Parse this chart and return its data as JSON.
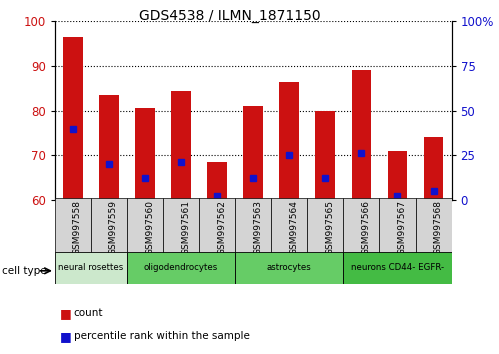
{
  "title": "GDS4538 / ILMN_1871150",
  "samples": [
    "GSM997558",
    "GSM997559",
    "GSM997560",
    "GSM997561",
    "GSM997562",
    "GSM997563",
    "GSM997564",
    "GSM997565",
    "GSM997566",
    "GSM997567",
    "GSM997568"
  ],
  "count_values": [
    96.5,
    83.5,
    80.5,
    84.5,
    68.5,
    81.0,
    86.5,
    80.0,
    89.0,
    71.0,
    74.0
  ],
  "percentile_left_axis": [
    76.0,
    68.0,
    65.0,
    68.5,
    61.0,
    65.0,
    70.0,
    65.0,
    70.5,
    61.0,
    62.0
  ],
  "ylim_left": [
    60,
    100
  ],
  "ylim_right": [
    0,
    100
  ],
  "yticks_left": [
    60,
    70,
    80,
    90,
    100
  ],
  "yticks_right": [
    0,
    25,
    50,
    75,
    100
  ],
  "ytick_labels_right": [
    "0",
    "25",
    "50",
    "75",
    "100%"
  ],
  "bar_color": "#cc1111",
  "percentile_color": "#1111cc",
  "cell_types": [
    {
      "label": "neural rosettes",
      "start": 0,
      "end": 2,
      "color": "#cce8cc"
    },
    {
      "label": "oligodendrocytes",
      "start": 2,
      "end": 5,
      "color": "#66cc66"
    },
    {
      "label": "astrocytes",
      "start": 5,
      "end": 8,
      "color": "#66cc66"
    },
    {
      "label": "neurons CD44- EGFR-",
      "start": 8,
      "end": 11,
      "color": "#44bb44"
    }
  ],
  "cell_type_label": "cell type",
  "legend_count": "count",
  "legend_percentile": "percentile rank within the sample",
  "axis_color_left": "#cc1111",
  "axis_color_right": "#1111cc",
  "bar_bottom": 60,
  "bar_width": 0.55
}
